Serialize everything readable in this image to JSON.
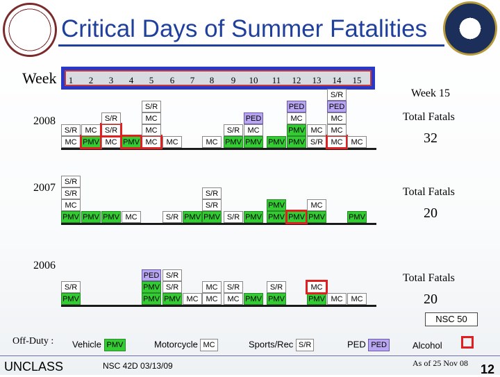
{
  "title": "Critical Days of Summer Fatalities",
  "week_label": "Week",
  "week_numbers": [
    "1",
    "2",
    "3",
    "4",
    "5",
    "6",
    "7",
    "8",
    "9",
    "10",
    "11",
    "12",
    "13",
    "14",
    "15"
  ],
  "current_week": "Week 15",
  "off_duty_label": "Off-Duty :",
  "classification": "UNCLASS",
  "nsc_label": "NSC 50",
  "source": "NSC 42D 03/13/09",
  "as_of": "As of 25 Nov 08",
  "page_number": "12",
  "colors": {
    "PMV": "#33cc33",
    "SR": "#ffffff",
    "MC": "#ffffff",
    "PED": "#b8a6f0",
    "alcohol": "#e02020",
    "week_bar": "#2a38c8"
  },
  "legend": [
    {
      "label": "Vehicle",
      "code": "PMV"
    },
    {
      "label": "Motorcycle",
      "code": "MC"
    },
    {
      "label": "Sports/Rec",
      "code": "S/R"
    },
    {
      "label": "PED",
      "code": "PED"
    },
    {
      "label": "Alcohol",
      "code": ""
    }
  ],
  "chart_data": {
    "type": "table",
    "title": "Critical Days of Summer Fatalities",
    "xlabel": "Week",
    "categories": [
      "1",
      "2",
      "3",
      "4",
      "5",
      "6",
      "7",
      "8",
      "9",
      "10",
      "11",
      "12",
      "13",
      "14",
      "15"
    ],
    "series": [
      {
        "year": "2008",
        "total_label": "Total Fatals",
        "total": "32",
        "weeks": [
          {
            "week": 1,
            "items": [
              {
                "c": "MC"
              },
              {
                "c": "S/R"
              }
            ]
          },
          {
            "week": 2,
            "items": [
              {
                "c": "PMV",
                "alcohol": true
              },
              {
                "c": "MC"
              }
            ]
          },
          {
            "week": 3,
            "items": [
              {
                "c": "MC"
              },
              {
                "c": "S/R",
                "alcohol": true
              },
              {
                "c": "S/R"
              }
            ]
          },
          {
            "week": 4,
            "items": [
              {
                "c": "PMV",
                "alcohol": true
              }
            ]
          },
          {
            "week": 5,
            "items": [
              {
                "c": "MC",
                "alcohol": true
              },
              {
                "c": "MC"
              },
              {
                "c": "MC"
              },
              {
                "c": "S/R"
              }
            ]
          },
          {
            "week": 6,
            "items": [
              {
                "c": "MC"
              }
            ]
          },
          {
            "week": 8,
            "items": [
              {
                "c": "MC"
              }
            ]
          },
          {
            "week": 9,
            "items": [
              {
                "c": "PMV"
              },
              {
                "c": "S/R"
              }
            ]
          },
          {
            "week": 10,
            "items": [
              {
                "c": "PMV"
              },
              {
                "c": "MC"
              },
              {
                "c": "PED"
              }
            ]
          },
          {
            "week": 11,
            "items": [
              {
                "c": "PMV"
              }
            ]
          },
          {
            "week": 12,
            "items": [
              {
                "c": "PMV"
              },
              {
                "c": "PMV"
              },
              {
                "c": "MC"
              },
              {
                "c": "PED"
              }
            ]
          },
          {
            "week": 13,
            "items": [
              {
                "c": "S/R"
              },
              {
                "c": "MC"
              }
            ]
          },
          {
            "week": 14,
            "items": [
              {
                "c": "MC",
                "alcohol": true
              },
              {
                "c": "MC"
              },
              {
                "c": "MC"
              },
              {
                "c": "PED"
              },
              {
                "c": "S/R"
              }
            ]
          },
          {
            "week": 15,
            "items": [
              {
                "c": "MC"
              }
            ]
          }
        ]
      },
      {
        "year": "2007",
        "total_label": "Total Fatals",
        "total": "20",
        "weeks": [
          {
            "week": 1,
            "items": [
              {
                "c": "PMV"
              },
              {
                "c": "MC"
              },
              {
                "c": "S/R"
              },
              {
                "c": "S/R"
              }
            ]
          },
          {
            "week": 2,
            "items": [
              {
                "c": "PMV"
              }
            ]
          },
          {
            "week": 3,
            "items": [
              {
                "c": "PMV"
              }
            ]
          },
          {
            "week": 4,
            "items": [
              {
                "c": "MC"
              }
            ]
          },
          {
            "week": 6,
            "items": [
              {
                "c": "S/R"
              }
            ]
          },
          {
            "week": 7,
            "items": [
              {
                "c": "PMV"
              }
            ]
          },
          {
            "week": 8,
            "items": [
              {
                "c": "PMV"
              },
              {
                "c": "S/R"
              },
              {
                "c": "S/R"
              }
            ]
          },
          {
            "week": 9,
            "items": [
              {
                "c": "S/R"
              }
            ]
          },
          {
            "week": 10,
            "items": [
              {
                "c": "PMV"
              }
            ]
          },
          {
            "week": 11,
            "items": [
              {
                "c": "PMV"
              },
              {
                "c": "PMV"
              }
            ]
          },
          {
            "week": 12,
            "items": [
              {
                "c": "PMV",
                "alcohol": true
              }
            ]
          },
          {
            "week": 13,
            "items": [
              {
                "c": "PMV"
              },
              {
                "c": "MC"
              }
            ]
          },
          {
            "week": 15,
            "items": [
              {
                "c": "PMV"
              }
            ]
          }
        ]
      },
      {
        "year": "2006",
        "total_label": "Total Fatals",
        "total": "20",
        "weeks": [
          {
            "week": 1,
            "items": [
              {
                "c": "PMV"
              },
              {
                "c": "S/R"
              }
            ]
          },
          {
            "week": 5,
            "items": [
              {
                "c": "PMV"
              },
              {
                "c": "PMV"
              },
              {
                "c": "PED"
              }
            ]
          },
          {
            "week": 6,
            "items": [
              {
                "c": "PMV"
              },
              {
                "c": "S/R"
              },
              {
                "c": "S/R"
              }
            ]
          },
          {
            "week": 7,
            "items": [
              {
                "c": "MC"
              }
            ]
          },
          {
            "week": 8,
            "items": [
              {
                "c": "MC"
              },
              {
                "c": "MC"
              }
            ]
          },
          {
            "week": 9,
            "items": [
              {
                "c": "MC"
              },
              {
                "c": "S/R"
              }
            ]
          },
          {
            "week": 10,
            "items": [
              {
                "c": "PMV"
              }
            ]
          },
          {
            "week": 11,
            "items": [
              {
                "c": "PMV"
              },
              {
                "c": "S/R"
              }
            ]
          },
          {
            "week": 13,
            "items": [
              {
                "c": "PMV"
              },
              {
                "c": "MC",
                "alcohol": true
              }
            ]
          },
          {
            "week": 14,
            "items": [
              {
                "c": "MC"
              }
            ]
          },
          {
            "week": 15,
            "items": [
              {
                "c": "MC"
              }
            ]
          }
        ]
      }
    ]
  }
}
